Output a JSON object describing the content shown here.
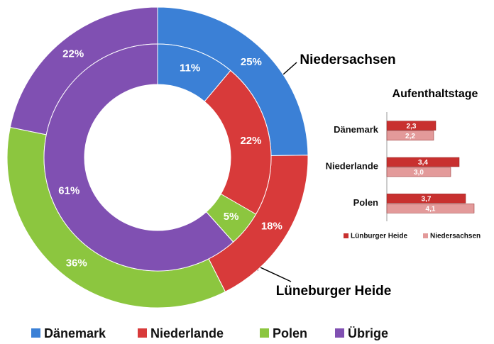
{
  "chart_data": [
    {
      "type": "donut",
      "categories": [
        "Dänemark",
        "Niederlande",
        "Polen",
        "Übrige"
      ],
      "colors": [
        "#3b80d6",
        "#d83a3a",
        "#8cc63f",
        "#8050b2"
      ],
      "series": [
        {
          "name": "Lüneburger Heide",
          "values": [
            25,
            18,
            36,
            22
          ],
          "value_labels": [
            "25%",
            "18%",
            "36%",
            "22%"
          ]
        },
        {
          "name": "Niedersachsen",
          "values": [
            11,
            22,
            5,
            61
          ],
          "value_labels": [
            "11%",
            "22%",
            "5%",
            "61%"
          ]
        }
      ],
      "legend": "bottom"
    },
    {
      "type": "hbar",
      "title": "Aufenthaltstage",
      "categories": [
        "Dänemark",
        "Niederlande",
        "Polen"
      ],
      "series": [
        {
          "name": "Lünburger Heide",
          "color": "#c8302f",
          "values": [
            2.3,
            3.4,
            3.7
          ],
          "value_labels": [
            "2,3",
            "3,4",
            "3,7"
          ]
        },
        {
          "name": "Niedersachsen",
          "color": "#e39a9a",
          "values": [
            2.2,
            3.0,
            4.1
          ],
          "value_labels": [
            "2,2",
            "3,0",
            "4,1"
          ]
        }
      ],
      "xlim": [
        0,
        5
      ],
      "legend": "bottom"
    }
  ]
}
